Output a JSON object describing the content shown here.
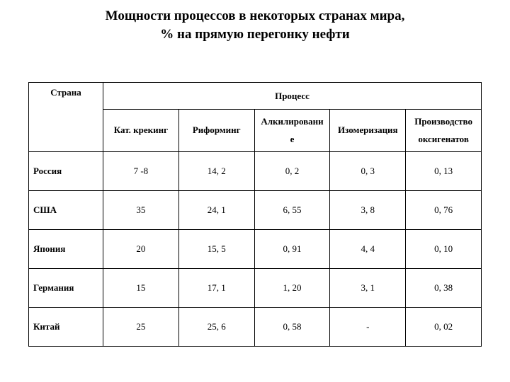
{
  "title_line1": "Мощности процессов в некоторых странах мира,",
  "title_line2": "% на прямую перегонку нефти",
  "header_process": "Процесс",
  "header_country": "Страна",
  "columns": [
    "Кат. крекинг",
    "Риформинг",
    "Алкилировани\nе",
    "Изомеризация",
    "Производство\nоксигенатов"
  ],
  "rows": [
    {
      "label": "Россия",
      "v": [
        "7 -8",
        "14, 2",
        "0, 2",
        "0, 3",
        "0, 13"
      ]
    },
    {
      "label": "США",
      "v": [
        "35",
        "24, 1",
        "6, 55",
        "3, 8",
        "0, 76"
      ]
    },
    {
      "label": "Япония",
      "v": [
        "20",
        "15, 5",
        "0, 91",
        "4, 4",
        "0, 10"
      ]
    },
    {
      "label": "Германия",
      "v": [
        "15",
        "17, 1",
        "1, 20",
        "3, 1",
        "0, 38"
      ]
    },
    {
      "label": "Китай",
      "v": [
        "25",
        "25, 6",
        "0, 58",
        "-",
        "0, 02"
      ]
    }
  ]
}
